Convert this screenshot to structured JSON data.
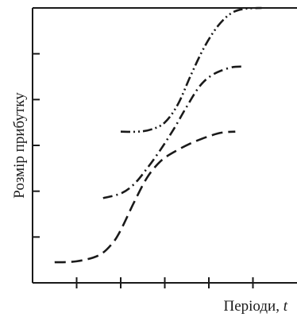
{
  "chart_data": {
    "type": "line",
    "xlabel_main": "Періоди, ",
    "xlabel_var": "t",
    "ylabel": "Розмір прибутку",
    "xlim": [
      0,
      6
    ],
    "ylim": [
      0,
      6
    ],
    "x_ticks": [
      1,
      2,
      3,
      4,
      5
    ],
    "y_ticks": [
      1,
      2,
      3,
      4,
      5
    ],
    "grid": false,
    "series": [
      {
        "dash": "long-dash",
        "points": [
          [
            0.5,
            0.45
          ],
          [
            1,
            0.47
          ],
          [
            1.5,
            0.6
          ],
          [
            1.8,
            0.85
          ],
          [
            2.0,
            1.15
          ],
          [
            2.3,
            1.75
          ],
          [
            2.6,
            2.3
          ],
          [
            2.9,
            2.65
          ],
          [
            3.2,
            2.85
          ],
          [
            3.6,
            3.05
          ],
          [
            4.0,
            3.2
          ],
          [
            4.3,
            3.28
          ],
          [
            4.6,
            3.3
          ]
        ]
      },
      {
        "dash": "dash-dot",
        "points": [
          [
            1.6,
            1.85
          ],
          [
            2.0,
            1.95
          ],
          [
            2.3,
            2.15
          ],
          [
            2.6,
            2.5
          ],
          [
            2.9,
            2.9
          ],
          [
            3.2,
            3.35
          ],
          [
            3.5,
            3.85
          ],
          [
            3.8,
            4.3
          ],
          [
            4.1,
            4.55
          ],
          [
            4.5,
            4.7
          ],
          [
            4.8,
            4.72
          ]
        ]
      },
      {
        "dash": "dash-dot-dot",
        "points": [
          [
            2.0,
            3.3
          ],
          [
            2.4,
            3.3
          ],
          [
            2.7,
            3.35
          ],
          [
            3.0,
            3.5
          ],
          [
            3.3,
            3.9
          ],
          [
            3.6,
            4.55
          ],
          [
            3.9,
            5.15
          ],
          [
            4.2,
            5.6
          ],
          [
            4.5,
            5.88
          ],
          [
            4.8,
            5.98
          ],
          [
            5.2,
            6.0
          ]
        ]
      }
    ],
    "line_color": "#1a1a1a"
  }
}
